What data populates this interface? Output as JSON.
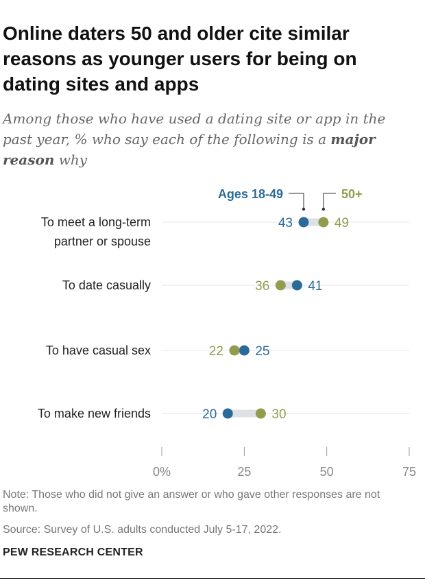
{
  "header": {
    "title": "Online daters 50 and older cite similar reasons as younger users for being on dating sites and apps",
    "subtitle_before": "Among those who have used a dating site or app in the past year, % who say each of the following is a ",
    "subtitle_bold": "major reason",
    "subtitle_after": " why"
  },
  "chart_data": {
    "type": "dot",
    "title": "Online daters 50 and older cite similar reasons as younger users for being on dating sites and apps",
    "categories": [
      [
        "To meet a long-term",
        "partner or spouse"
      ],
      [
        "To date casually"
      ],
      [
        "To have casual sex"
      ],
      [
        "To make new friends"
      ]
    ],
    "series": [
      {
        "name": "Ages 18-49",
        "color": "#2a6a99",
        "values": [
          43,
          41,
          25,
          20
        ]
      },
      {
        "name": "50+",
        "color": "#939b4e",
        "values": [
          49,
          36,
          22,
          30
        ]
      }
    ],
    "xlim": [
      0,
      75
    ],
    "ticks": [
      0,
      25,
      50,
      75
    ],
    "tick_labels": [
      "0%",
      "25",
      "50",
      "75"
    ],
    "legend_placement": "top, annotating first row",
    "grid": "horizontal row guides"
  },
  "footer": {
    "note": "Note: Those who did not give an answer or who gave other responses are not shown.",
    "source": "Source: Survey of U.S. adults conducted July 5-17, 2022.",
    "brand": "PEW RESEARCH CENTER"
  },
  "colors": {
    "young": "#2a6a99",
    "old": "#939b4e",
    "connector": "#dde1e6",
    "grid": "#e4e4e4"
  }
}
